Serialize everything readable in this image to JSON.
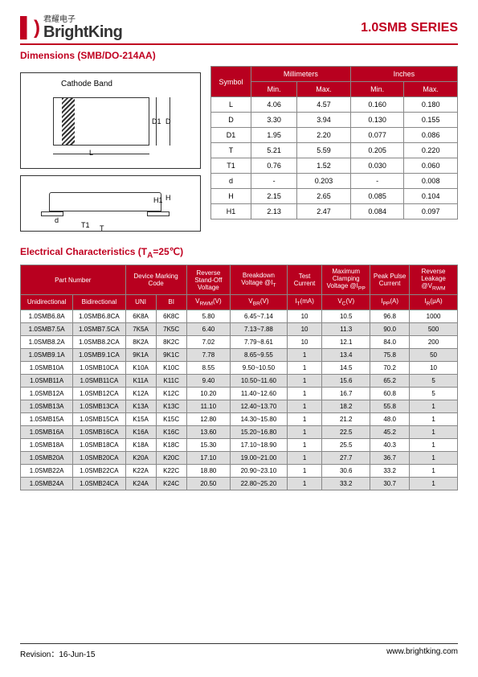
{
  "header": {
    "logo_cn": "君耀电子",
    "logo_en": "BrightKing",
    "series": "1.0SMB SERIES"
  },
  "dimensions": {
    "title": "Dimensions (SMB/DO-214AA)",
    "cathode_label": "Cathode Band",
    "table_headers": {
      "symbol": "Symbol",
      "mm": "Millimeters",
      "in": "Inches",
      "min": "Min.",
      "max": "Max."
    },
    "rows": [
      {
        "sym": "L",
        "mm_min": "4.06",
        "mm_max": "4.57",
        "in_min": "0.160",
        "in_max": "0.180"
      },
      {
        "sym": "D",
        "mm_min": "3.30",
        "mm_max": "3.94",
        "in_min": "0.130",
        "in_max": "0.155"
      },
      {
        "sym": "D1",
        "mm_min": "1.95",
        "mm_max": "2.20",
        "in_min": "0.077",
        "in_max": "0.086"
      },
      {
        "sym": "T",
        "mm_min": "5.21",
        "mm_max": "5.59",
        "in_min": "0.205",
        "in_max": "0.220"
      },
      {
        "sym": "T1",
        "mm_min": "0.76",
        "mm_max": "1.52",
        "in_min": "0.030",
        "in_max": "0.060"
      },
      {
        "sym": "d",
        "mm_min": "-",
        "mm_max": "0.203",
        "in_min": "-",
        "in_max": "0.008"
      },
      {
        "sym": "H",
        "mm_min": "2.15",
        "mm_max": "2.65",
        "in_min": "0.085",
        "in_max": "0.104"
      },
      {
        "sym": "H1",
        "mm_min": "2.13",
        "mm_max": "2.47",
        "in_min": "0.084",
        "in_max": "0.097"
      }
    ]
  },
  "electrical": {
    "title": "Electrical Characteristics (T",
    "title_sub": "A",
    "title_suffix": "=25℃)",
    "headers": {
      "part_number": "Part Number",
      "marking": "Device Marking Code",
      "standoff": "Reverse Stand-Off Voltage",
      "breakdown": "Breakdown Voltage @I",
      "breakdown_sub": "T",
      "test": "Test Current",
      "clamp": "Maximum Clamping Voltage @I",
      "clamp_sub": "PP",
      "peak": "Peak Pulse Current",
      "leakage": "Reverse Leakage @V",
      "leakage_sub": "RWM",
      "uni": "Unidirectional",
      "bi": "Bidirectional",
      "uni_c": "UNI",
      "bi_c": "BI",
      "vrwm": "V",
      "vrwm_sub": "RWM",
      "vrwm_unit": "(V)",
      "vbr": "V",
      "vbr_sub": "BR",
      "vbr_unit": "(V)",
      "it": "I",
      "it_sub": "T",
      "it_unit": "(mA)",
      "vc": "V",
      "vc_sub": "C",
      "vc_unit": "(V)",
      "ipp": "I",
      "ipp_sub": "PP",
      "ipp_unit": "(A)",
      "ir": "I",
      "ir_sub": "R",
      "ir_unit": "(μA)"
    },
    "rows": [
      {
        "uni": "1.0SMB6.8A",
        "bi": "1.0SMB6.8CA",
        "c1": "6K8A",
        "c2": "6K8C",
        "vrwm": "5.80",
        "vbr": "6.45~7.14",
        "it": "10",
        "vc": "10.5",
        "ipp": "96.8",
        "ir": "1000",
        "shade": false
      },
      {
        "uni": "1.0SMB7.5A",
        "bi": "1.0SMB7.5CA",
        "c1": "7K5A",
        "c2": "7K5C",
        "vrwm": "6.40",
        "vbr": "7.13~7.88",
        "it": "10",
        "vc": "11.3",
        "ipp": "90.0",
        "ir": "500",
        "shade": true
      },
      {
        "uni": "1.0SMB8.2A",
        "bi": "1.0SMB8.2CA",
        "c1": "8K2A",
        "c2": "8K2C",
        "vrwm": "7.02",
        "vbr": "7.79~8.61",
        "it": "10",
        "vc": "12.1",
        "ipp": "84.0",
        "ir": "200",
        "shade": false
      },
      {
        "uni": "1.0SMB9.1A",
        "bi": "1.0SMB9.1CA",
        "c1": "9K1A",
        "c2": "9K1C",
        "vrwm": "7.78",
        "vbr": "8.65~9.55",
        "it": "1",
        "vc": "13.4",
        "ipp": "75.8",
        "ir": "50",
        "shade": true
      },
      {
        "uni": "1.0SMB10A",
        "bi": "1.0SMB10CA",
        "c1": "K10A",
        "c2": "K10C",
        "vrwm": "8.55",
        "vbr": "9.50~10.50",
        "it": "1",
        "vc": "14.5",
        "ipp": "70.2",
        "ir": "10",
        "shade": false
      },
      {
        "uni": "1.0SMB11A",
        "bi": "1.0SMB11CA",
        "c1": "K11A",
        "c2": "K11C",
        "vrwm": "9.40",
        "vbr": "10.50~11.60",
        "it": "1",
        "vc": "15.6",
        "ipp": "65.2",
        "ir": "5",
        "shade": true
      },
      {
        "uni": "1.0SMB12A",
        "bi": "1.0SMB12CA",
        "c1": "K12A",
        "c2": "K12C",
        "vrwm": "10.20",
        "vbr": "11.40~12.60",
        "it": "1",
        "vc": "16.7",
        "ipp": "60.8",
        "ir": "5",
        "shade": false
      },
      {
        "uni": "1.0SMB13A",
        "bi": "1.0SMB13CA",
        "c1": "K13A",
        "c2": "K13C",
        "vrwm": "11.10",
        "vbr": "12.40~13.70",
        "it": "1",
        "vc": "18.2",
        "ipp": "55.8",
        "ir": "1",
        "shade": true
      },
      {
        "uni": "1.0SMB15A",
        "bi": "1.0SMB15CA",
        "c1": "K15A",
        "c2": "K15C",
        "vrwm": "12.80",
        "vbr": "14.30~15.80",
        "it": "1",
        "vc": "21.2",
        "ipp": "48.0",
        "ir": "1",
        "shade": false
      },
      {
        "uni": "1.0SMB16A",
        "bi": "1.0SMB16CA",
        "c1": "K16A",
        "c2": "K16C",
        "vrwm": "13.60",
        "vbr": "15.20~16.80",
        "it": "1",
        "vc": "22.5",
        "ipp": "45.2",
        "ir": "1",
        "shade": true
      },
      {
        "uni": "1.0SMB18A",
        "bi": "1.0SMB18CA",
        "c1": "K18A",
        "c2": "K18C",
        "vrwm": "15.30",
        "vbr": "17.10~18.90",
        "it": "1",
        "vc": "25.5",
        "ipp": "40.3",
        "ir": "1",
        "shade": false
      },
      {
        "uni": "1.0SMB20A",
        "bi": "1.0SMB20CA",
        "c1": "K20A",
        "c2": "K20C",
        "vrwm": "17.10",
        "vbr": "19.00~21.00",
        "it": "1",
        "vc": "27.7",
        "ipp": "36.7",
        "ir": "1",
        "shade": true
      },
      {
        "uni": "1.0SMB22A",
        "bi": "1.0SMB22CA",
        "c1": "K22A",
        "c2": "K22C",
        "vrwm": "18.80",
        "vbr": "20.90~23.10",
        "it": "1",
        "vc": "30.6",
        "ipp": "33.2",
        "ir": "1",
        "shade": false
      },
      {
        "uni": "1.0SMB24A",
        "bi": "1.0SMB24CA",
        "c1": "K24A",
        "c2": "K24C",
        "vrwm": "20.50",
        "vbr": "22.80~25.20",
        "it": "1",
        "vc": "33.2",
        "ipp": "30.7",
        "ir": "1",
        "shade": true
      }
    ]
  },
  "footer": {
    "revision": "Revision：16-Jun-15",
    "url": "www.brightking.com"
  },
  "colors": {
    "accent": "#c00020",
    "th_bg": "#b8001f",
    "shade_bg": "#dddddd"
  }
}
